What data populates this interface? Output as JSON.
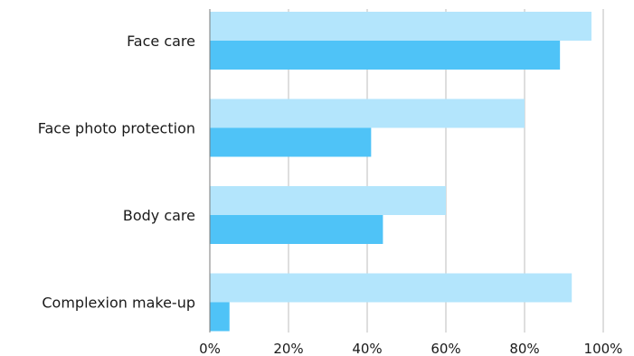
{
  "chart_data": {
    "type": "bar",
    "orientation": "horizontal",
    "categories": [
      "Face care",
      "Face photo protection",
      "Body care",
      "Complexion make-up"
    ],
    "series": [
      {
        "values": [
          97,
          80,
          60,
          92
        ],
        "color": "#b3e5fc"
      },
      {
        "values": [
          89,
          41,
          44,
          5
        ],
        "color": "#4fc3f7"
      }
    ],
    "xlim": [
      0,
      100
    ],
    "x_ticks": [
      0,
      20,
      40,
      60,
      80,
      100
    ],
    "x_tick_labels": [
      "0%",
      "20%",
      "40%",
      "60%",
      "80%",
      "100%"
    ],
    "grid": true,
    "legend": "none",
    "title": "",
    "xlabel": "",
    "ylabel": ""
  }
}
